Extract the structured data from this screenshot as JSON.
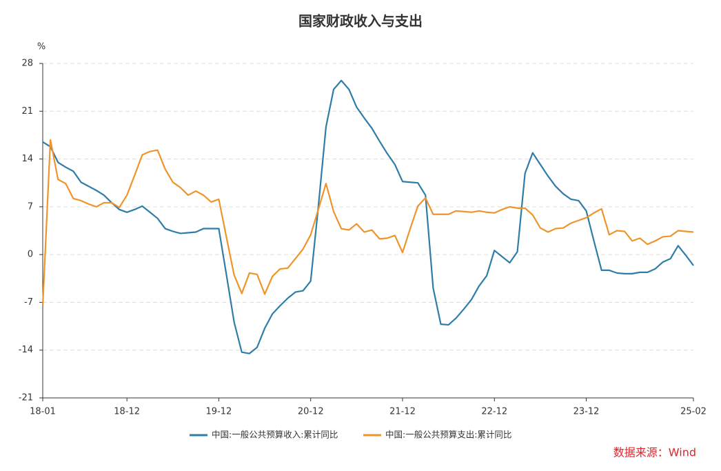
{
  "chart_data": {
    "type": "line",
    "title": "国家财政收入与支出",
    "y_label": "%",
    "source": "数据来源：Wind",
    "categories": [
      "18-01",
      null,
      null,
      null,
      null,
      null,
      null,
      null,
      null,
      null,
      null,
      "18-12",
      null,
      null,
      null,
      null,
      null,
      null,
      null,
      null,
      null,
      null,
      null,
      "19-12",
      null,
      null,
      null,
      null,
      null,
      null,
      null,
      null,
      null,
      null,
      null,
      "20-12",
      null,
      null,
      null,
      null,
      null,
      null,
      null,
      null,
      null,
      null,
      null,
      "21-12",
      null,
      null,
      null,
      null,
      null,
      null,
      null,
      null,
      null,
      null,
      null,
      "22-12",
      null,
      null,
      null,
      null,
      null,
      null,
      null,
      null,
      null,
      null,
      null,
      "23-12",
      null,
      null,
      null,
      null,
      null,
      null,
      null,
      null,
      null,
      null,
      null,
      null,
      null,
      "25-02"
    ],
    "series": [
      {
        "name": "中国:一般公共预算收入:累计同比",
        "color": "#2e7ca8",
        "values": [
          16.5,
          15.8,
          13.5,
          12.8,
          12.2,
          10.6,
          10.0,
          9.4,
          8.7,
          7.6,
          6.6,
          6.2,
          6.6,
          7.1,
          6.2,
          5.3,
          3.8,
          3.4,
          3.1,
          3.2,
          3.3,
          3.8,
          3.8,
          3.8,
          -3,
          -9.9,
          -14.3,
          -14.5,
          -13.6,
          -10.8,
          -8.7,
          -7.5,
          -6.4,
          -5.5,
          -5.3,
          -3.9,
          7,
          18.7,
          24.2,
          25.5,
          24.2,
          21.6,
          20,
          18.5,
          16.6,
          14.8,
          13.2,
          10.7,
          10.6,
          10.5,
          8.7,
          -4.9,
          -10.2,
          -10.3,
          -9.3,
          -8.0,
          -6.6,
          -4.6,
          -3.1,
          0.6,
          -0.3,
          -1.2,
          0.4,
          11.9,
          14.9,
          13.2,
          11.5,
          10,
          8.9,
          8.1,
          7.9,
          6.4,
          2,
          -2.3,
          -2.3,
          -2.7,
          -2.8,
          -2.8,
          -2.6,
          -2.6,
          -2.1,
          -1.1,
          -0.6,
          1.3,
          -0.1,
          -1.6
        ]
      },
      {
        "name": "中国:一般公共预算支出:累计同比",
        "color": "#f0942a",
        "values": [
          -7.5,
          16.8,
          11,
          10.4,
          8.2,
          7.9,
          7.4,
          7.0,
          7.6,
          7.6,
          6.9,
          8.7,
          11.6,
          14.6,
          15.1,
          15.3,
          12.5,
          10.6,
          9.8,
          8.7,
          9.3,
          8.7,
          7.7,
          8.1,
          2.5,
          -3,
          -5.7,
          -2.7,
          -2.9,
          -5.8,
          -3.2,
          -2.1,
          -2.0,
          -0.6,
          0.8,
          2.9,
          6.6,
          10.4,
          6.3,
          3.8,
          3.6,
          4.5,
          3.3,
          3.6,
          2.3,
          2.4,
          2.8,
          0.3,
          3.8,
          7.1,
          8.3,
          5.9,
          5.9,
          5.9,
          6.4,
          6.3,
          6.2,
          6.4,
          6.2,
          6.1,
          6.6,
          7.0,
          6.8,
          6.8,
          5.8,
          3.9,
          3.3,
          3.8,
          3.9,
          4.6,
          5.0,
          5.4,
          6.1,
          6.7,
          2.9,
          3.5,
          3.4,
          2.0,
          2.4,
          1.5,
          2.0,
          2.6,
          2.7,
          3.5,
          3.4,
          3.3
        ]
      }
    ],
    "ylim": [
      -21,
      28
    ],
    "yticks": [
      -21,
      -14,
      -7,
      0,
      7,
      14,
      21,
      28
    ],
    "grid": true,
    "legend": "bottom"
  }
}
